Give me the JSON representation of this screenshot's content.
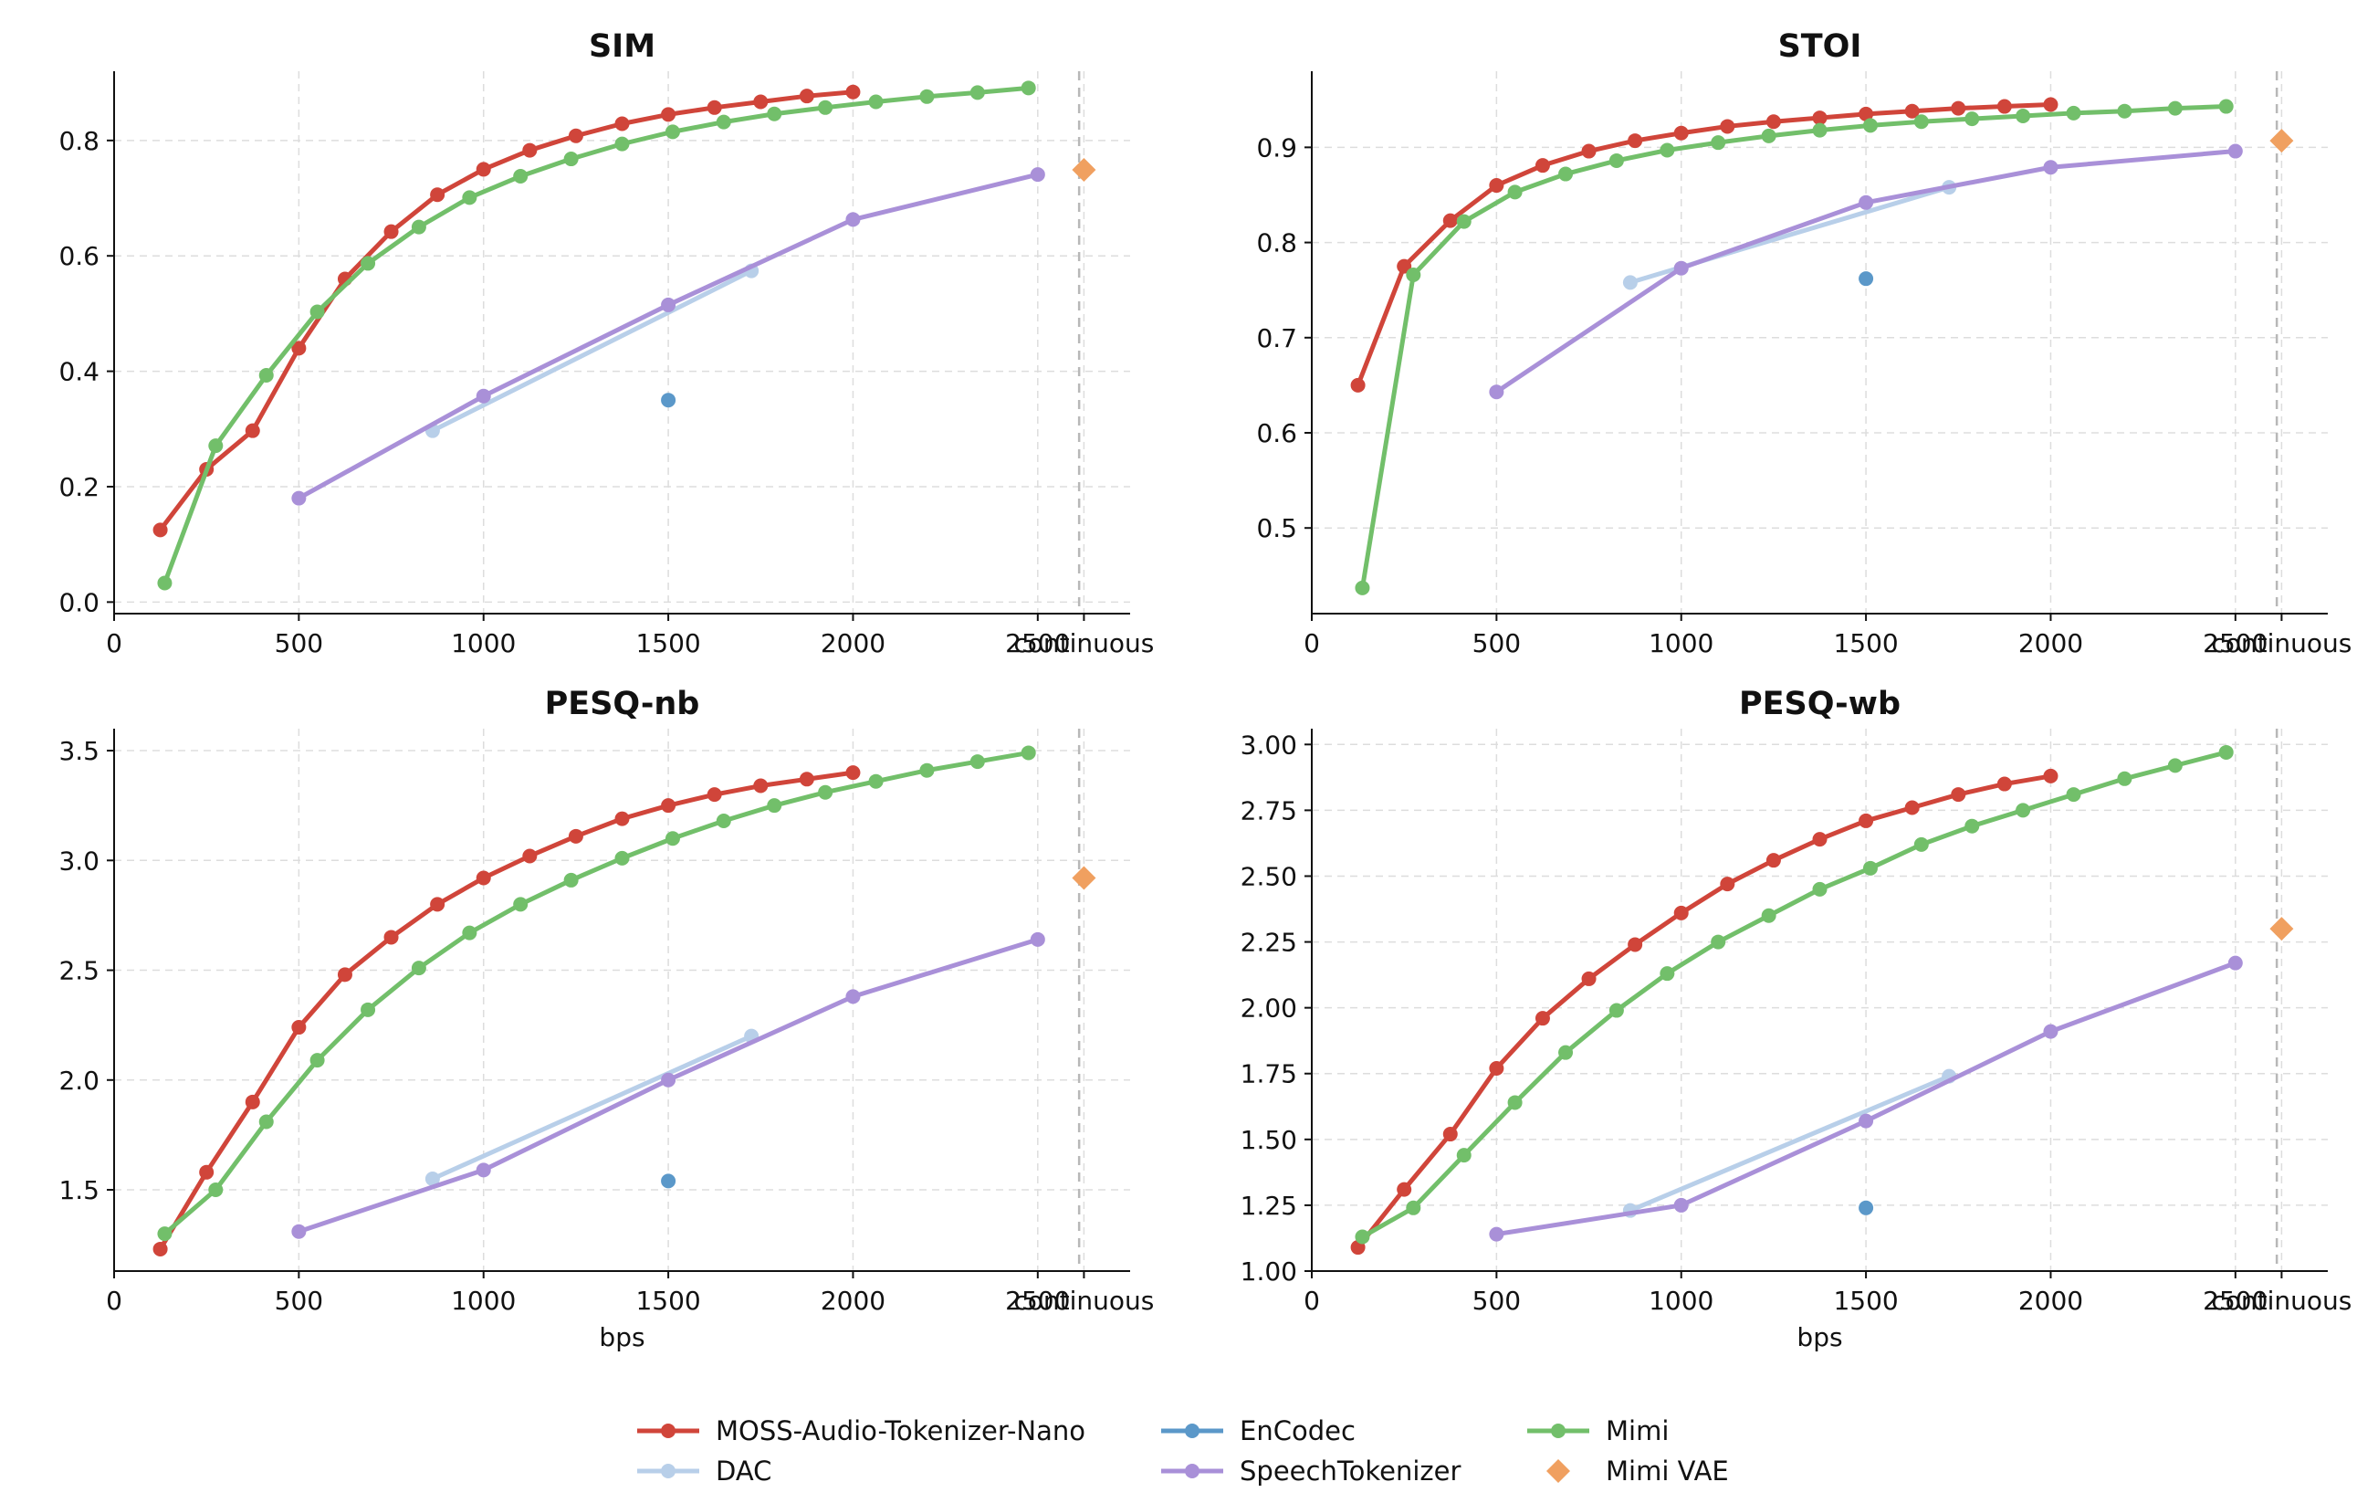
{
  "chart_data": [
    {
      "type": "line",
      "title": "SIM",
      "xlabel": "",
      "xlim": [
        0,
        2750
      ],
      "ylim": [
        -0.02,
        0.92
      ],
      "yticks": [
        0.0,
        0.2,
        0.4,
        0.6,
        0.8
      ],
      "ytick_labels": [
        "0.0",
        "0.2",
        "0.4",
        "0.6",
        "0.8"
      ],
      "series": [
        {
          "name": "MOSS-Audio-Tokenizer-Nano",
          "x": [
            125,
            250,
            375,
            500,
            625,
            750,
            875,
            1000,
            1125,
            1250,
            1375,
            1500,
            1625,
            1750,
            1875,
            2000
          ],
          "y": [
            0.125,
            0.23,
            0.297,
            0.44,
            0.56,
            0.642,
            0.706,
            0.75,
            0.783,
            0.808,
            0.829,
            0.845,
            0.857,
            0.867,
            0.877,
            0.884
          ]
        },
        {
          "name": "DAC",
          "x": [
            862,
            1725
          ],
          "y": [
            0.297,
            0.574
          ]
        },
        {
          "name": "EnCodec",
          "x": [
            1500
          ],
          "y": [
            0.35
          ]
        },
        {
          "name": "SpeechTokenizer",
          "x": [
            500,
            1000,
            1500,
            2000,
            2500
          ],
          "y": [
            0.18,
            0.357,
            0.515,
            0.663,
            0.741
          ]
        },
        {
          "name": "Mimi",
          "x": [
            137,
            275,
            412,
            550,
            687,
            825,
            962,
            1100,
            1237,
            1375,
            1512,
            1650,
            1787,
            1925,
            2062,
            2200,
            2337,
            2475
          ],
          "y": [
            0.033,
            0.271,
            0.393,
            0.503,
            0.587,
            0.65,
            0.701,
            0.738,
            0.768,
            0.794,
            0.815,
            0.832,
            0.846,
            0.857,
            0.867,
            0.876,
            0.883,
            0.891
          ]
        }
      ],
      "reference": {
        "name": "Mimi VAE",
        "x_label": "continuous",
        "y": 0.749
      }
    },
    {
      "type": "line",
      "title": "STOI",
      "xlabel": "",
      "xlim": [
        0,
        2750
      ],
      "ylim": [
        0.41,
        0.98
      ],
      "yticks": [
        0.5,
        0.6,
        0.7,
        0.8,
        0.9
      ],
      "ytick_labels": [
        "0.5",
        "0.6",
        "0.7",
        "0.8",
        "0.9"
      ],
      "series": [
        {
          "name": "MOSS-Audio-Tokenizer-Nano",
          "x": [
            125,
            250,
            375,
            500,
            625,
            750,
            875,
            1000,
            1125,
            1250,
            1375,
            1500,
            1625,
            1750,
            1875,
            2000
          ],
          "y": [
            0.65,
            0.775,
            0.823,
            0.86,
            0.881,
            0.896,
            0.907,
            0.915,
            0.922,
            0.927,
            0.931,
            0.935,
            0.938,
            0.941,
            0.943,
            0.945
          ]
        },
        {
          "name": "DAC",
          "x": [
            862,
            1725
          ],
          "y": [
            0.758,
            0.858
          ]
        },
        {
          "name": "EnCodec",
          "x": [
            1500
          ],
          "y": [
            0.762
          ]
        },
        {
          "name": "SpeechTokenizer",
          "x": [
            500,
            1000,
            1500,
            2000,
            2500
          ],
          "y": [
            0.643,
            0.773,
            0.842,
            0.879,
            0.896
          ]
        },
        {
          "name": "Mimi",
          "x": [
            137,
            275,
            412,
            550,
            687,
            825,
            962,
            1100,
            1237,
            1375,
            1512,
            1650,
            1787,
            1925,
            2062,
            2200,
            2337,
            2475
          ],
          "y": [
            0.437,
            0.766,
            0.822,
            0.853,
            0.872,
            0.886,
            0.897,
            0.905,
            0.912,
            0.918,
            0.923,
            0.927,
            0.93,
            0.933,
            0.936,
            0.938,
            0.941,
            0.943
          ]
        }
      ],
      "reference": {
        "name": "Mimi VAE",
        "x_label": "continuous",
        "y": 0.907
      }
    },
    {
      "type": "line",
      "title": "PESQ-nb",
      "xlabel": "bps",
      "xlim": [
        0,
        2750
      ],
      "ylim": [
        1.13,
        3.6
      ],
      "yticks": [
        1.5,
        2.0,
        2.5,
        3.0,
        3.5
      ],
      "ytick_labels": [
        "1.5",
        "2.0",
        "2.5",
        "3.0",
        "3.5"
      ],
      "series": [
        {
          "name": "MOSS-Audio-Tokenizer-Nano",
          "x": [
            125,
            250,
            375,
            500,
            625,
            750,
            875,
            1000,
            1125,
            1250,
            1375,
            1500,
            1625,
            1750,
            1875,
            2000
          ],
          "y": [
            1.23,
            1.58,
            1.9,
            2.24,
            2.48,
            2.65,
            2.8,
            2.92,
            3.02,
            3.11,
            3.19,
            3.25,
            3.3,
            3.34,
            3.37,
            3.4
          ]
        },
        {
          "name": "DAC",
          "x": [
            862,
            1725
          ],
          "y": [
            1.55,
            2.2
          ]
        },
        {
          "name": "EnCodec",
          "x": [
            1500
          ],
          "y": [
            1.54
          ]
        },
        {
          "name": "SpeechTokenizer",
          "x": [
            500,
            1000,
            1500,
            2000,
            2500
          ],
          "y": [
            1.31,
            1.59,
            2.0,
            2.38,
            2.64
          ]
        },
        {
          "name": "Mimi",
          "x": [
            137,
            275,
            412,
            550,
            687,
            825,
            962,
            1100,
            1237,
            1375,
            1512,
            1650,
            1787,
            1925,
            2062,
            2200,
            2337,
            2475
          ],
          "y": [
            1.3,
            1.5,
            1.81,
            2.09,
            2.32,
            2.51,
            2.67,
            2.8,
            2.91,
            3.01,
            3.1,
            3.18,
            3.25,
            3.31,
            3.36,
            3.41,
            3.45,
            3.49
          ]
        }
      ],
      "reference": {
        "name": "Mimi VAE",
        "x_label": "continuous",
        "y": 2.92
      }
    },
    {
      "type": "line",
      "title": "PESQ-wb",
      "xlabel": "bps",
      "xlim": [
        0,
        2750
      ],
      "ylim": [
        1.0,
        3.06
      ],
      "yticks": [
        1.0,
        1.25,
        1.5,
        1.75,
        2.0,
        2.25,
        2.5,
        2.75,
        3.0
      ],
      "ytick_labels": [
        "1.00",
        "1.25",
        "1.50",
        "1.75",
        "2.00",
        "2.25",
        "2.50",
        "2.75",
        "3.00"
      ],
      "series": [
        {
          "name": "MOSS-Audio-Tokenizer-Nano",
          "x": [
            125,
            250,
            375,
            500,
            625,
            750,
            875,
            1000,
            1125,
            1250,
            1375,
            1500,
            1625,
            1750,
            1875,
            2000
          ],
          "y": [
            1.09,
            1.31,
            1.52,
            1.77,
            1.96,
            2.11,
            2.24,
            2.36,
            2.47,
            2.56,
            2.64,
            2.71,
            2.76,
            2.81,
            2.85,
            2.88
          ]
        },
        {
          "name": "DAC",
          "x": [
            862,
            1725
          ],
          "y": [
            1.23,
            1.74
          ]
        },
        {
          "name": "EnCodec",
          "x": [
            1500
          ],
          "y": [
            1.24
          ]
        },
        {
          "name": "SpeechTokenizer",
          "x": [
            500,
            1000,
            1500,
            2000,
            2500
          ],
          "y": [
            1.14,
            1.25,
            1.57,
            1.91,
            2.17
          ]
        },
        {
          "name": "Mimi",
          "x": [
            137,
            275,
            412,
            550,
            687,
            825,
            962,
            1100,
            1237,
            1375,
            1512,
            1650,
            1787,
            1925,
            2062,
            2200,
            2337,
            2475
          ],
          "y": [
            1.13,
            1.24,
            1.44,
            1.64,
            1.83,
            1.99,
            2.13,
            2.25,
            2.35,
            2.45,
            2.53,
            2.62,
            2.69,
            2.75,
            2.81,
            2.87,
            2.92,
            2.97
          ]
        }
      ],
      "reference": {
        "name": "Mimi VAE",
        "x_label": "continuous",
        "y": 2.3
      }
    }
  ],
  "xticks": [
    0,
    500,
    1000,
    1500,
    2000,
    2500
  ],
  "xtick_labels": [
    "0",
    "500",
    "1000",
    "1500",
    "2000",
    "2500"
  ],
  "continuous_label": "continuous",
  "colors": {
    "MOSS-Audio-Tokenizer-Nano": "#d0453a",
    "DAC": "#b8cfe9",
    "EnCodec": "#5b98c9",
    "SpeechTokenizer": "#a990d8",
    "Mimi": "#72bf6a",
    "Mimi VAE": "#f0a060"
  },
  "legend": {
    "placement": "bottom-center",
    "entries": [
      {
        "label": "MOSS-Audio-Tokenizer-Nano",
        "marker": "circle"
      },
      {
        "label": "DAC",
        "marker": "circle"
      },
      {
        "label": "EnCodec",
        "marker": "circle"
      },
      {
        "label": "SpeechTokenizer",
        "marker": "circle"
      },
      {
        "label": "Mimi",
        "marker": "circle"
      },
      {
        "label": "Mimi VAE",
        "marker": "diamond"
      }
    ]
  },
  "grid": true
}
